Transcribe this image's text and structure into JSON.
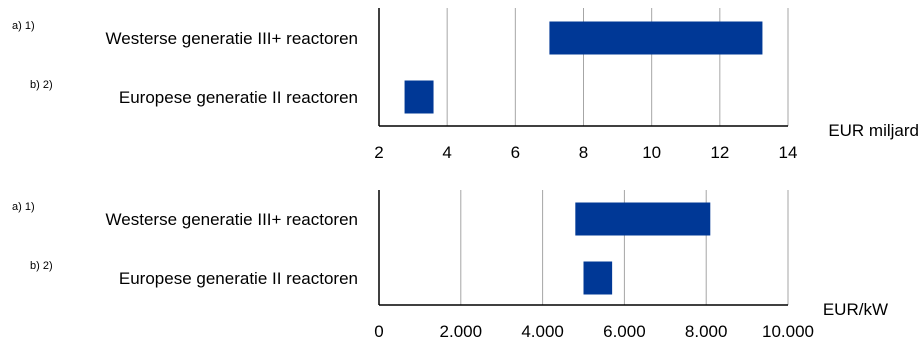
{
  "chart_data": [
    {
      "type": "bar",
      "orientation": "horizontal",
      "range_bars": true,
      "categories": [
        {
          "marker": "a) 1)",
          "label": "Westerse generatie III+ reactoren"
        },
        {
          "marker": "b) 2)",
          "label": "Europese generatie II reactoren"
        }
      ],
      "ranges": [
        [
          7.0,
          13.25
        ],
        [
          2.75,
          3.6
        ]
      ],
      "xlabel": "EUR miljard",
      "xlim": [
        2,
        14
      ],
      "xticks": [
        2,
        4,
        6,
        8,
        10,
        12,
        14
      ],
      "xtick_labels": [
        "2",
        "4",
        "6",
        "8",
        "10",
        "12",
        "14"
      ],
      "grid": "vertical",
      "bar_color": "#003896"
    },
    {
      "type": "bar",
      "orientation": "horizontal",
      "range_bars": true,
      "categories": [
        {
          "marker": "a) 1)",
          "label": "Westerse generatie III+ reactoren"
        },
        {
          "marker": "b) 2)",
          "label": "Europese generatie II reactoren"
        }
      ],
      "ranges": [
        [
          4800,
          8100
        ],
        [
          5000,
          5700
        ]
      ],
      "xlabel": "EUR/kW",
      "xlim": [
        0,
        10000
      ],
      "xticks": [
        0,
        2000,
        4000,
        6000,
        8000,
        10000
      ],
      "xtick_labels": [
        "0",
        "2.000",
        "4.000",
        "6.000",
        "8.000",
        "10.000"
      ],
      "grid": "vertical",
      "bar_color": "#003896"
    }
  ]
}
